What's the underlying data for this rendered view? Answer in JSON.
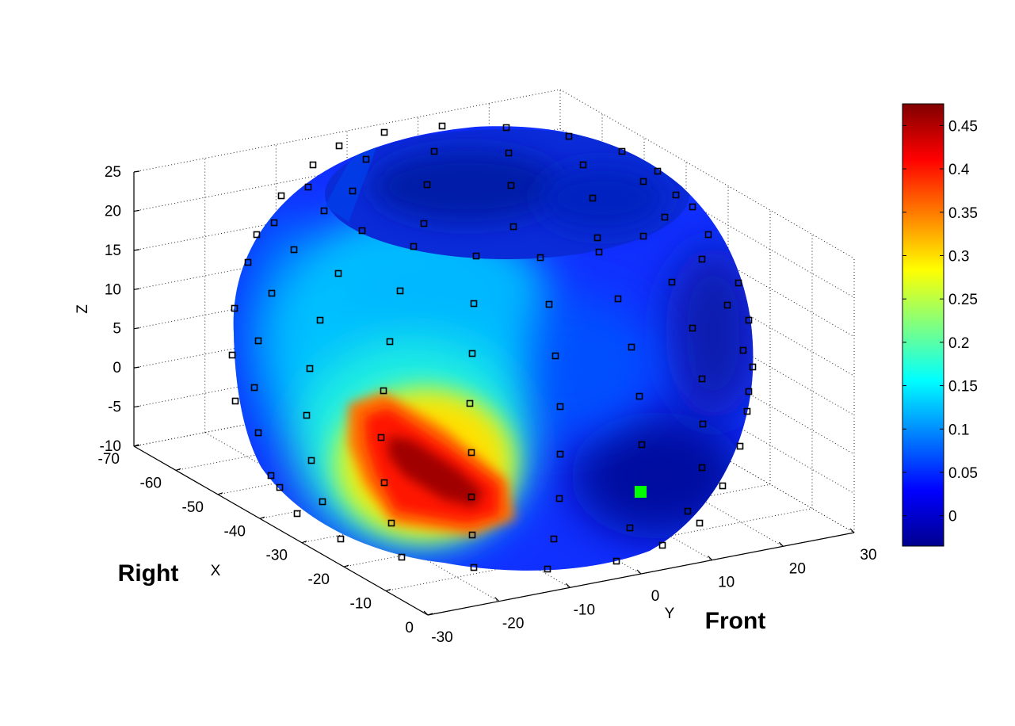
{
  "chart_data": {
    "type": "heatmap",
    "plot_kind": "3D interpolated surface on a head-shaped sphere with electrode markers",
    "axes": {
      "x": {
        "label": "X",
        "range": [
          -70,
          0
        ],
        "ticks": [
          "-70",
          "-60",
          "-50",
          "-40",
          "-30",
          "-20",
          "-10",
          "0"
        ]
      },
      "y": {
        "label": "Y",
        "range": [
          -30,
          30
        ],
        "ticks": [
          "-30",
          "-20",
          "-10",
          "0",
          "10",
          "20",
          "30"
        ]
      },
      "z": {
        "label": "Z",
        "range": [
          -10,
          25
        ],
        "ticks": [
          "-10",
          "-5",
          "0",
          "5",
          "10",
          "15",
          "20",
          "25"
        ]
      }
    },
    "grid": true,
    "colormap": "jet",
    "colorbar": {
      "range": [
        -0.035,
        0.475
      ],
      "ticks": [
        "0",
        "0.05",
        "0.1",
        "0.15",
        "0.2",
        "0.25",
        "0.3",
        "0.35",
        "0.4",
        "0.45"
      ],
      "location": "right"
    },
    "annotations": [
      "Right",
      "Front"
    ],
    "peak": {
      "value": 0.47,
      "location": "lower right-front region"
    },
    "highlighted_marker_color": "#00ff00"
  }
}
